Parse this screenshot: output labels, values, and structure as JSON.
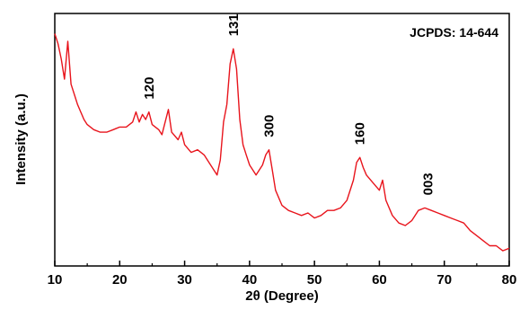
{
  "chart_data": {
    "type": "line",
    "title": "",
    "xlabel": "2θ (Degree)",
    "ylabel": "Intensity (a.u.)",
    "xlim": [
      10,
      80
    ],
    "ylim": [
      0,
      100
    ],
    "y_ticks_labeled": false,
    "x_ticks": [
      10,
      20,
      30,
      40,
      50,
      60,
      70,
      80
    ],
    "grid": false,
    "legend": "none",
    "annotation": "JCPDS: 14-644",
    "series": [
      {
        "color": "#e8141c",
        "x": [
          10,
          10.5,
          11,
          11.5,
          12,
          12.5,
          13,
          13.5,
          14,
          14.5,
          15,
          16,
          17,
          18,
          19,
          20,
          21,
          22,
          22.5,
          23,
          23.5,
          24,
          24.5,
          25,
          25.5,
          26,
          26.5,
          27,
          27.5,
          28,
          29,
          29.5,
          30,
          31,
          32,
          33,
          34,
          35,
          35.5,
          36,
          36.5,
          37,
          37.5,
          38,
          38.5,
          39,
          39.5,
          40,
          41,
          42,
          42.5,
          43,
          43.5,
          44,
          45,
          46,
          47,
          48,
          49,
          50,
          51,
          52,
          53,
          54,
          55,
          56,
          56.5,
          57,
          57.5,
          58,
          59,
          60,
          60.5,
          61,
          62,
          63,
          64,
          65,
          66,
          67,
          68,
          69,
          70,
          71,
          72,
          73,
          74,
          75,
          76,
          77,
          78,
          79,
          80
        ],
        "y": [
          92,
          88,
          82,
          74,
          89,
          72,
          68,
          64,
          61,
          58,
          56,
          54,
          53,
          53,
          54,
          55,
          55,
          57,
          61,
          57,
          60,
          58,
          61,
          56,
          55,
          54,
          52,
          57,
          62,
          53,
          50,
          53,
          48,
          45,
          46,
          44,
          40,
          36,
          42,
          57,
          64,
          80,
          86,
          78,
          58,
          48,
          44,
          40,
          36,
          40,
          44,
          46,
          38,
          30,
          24,
          22,
          21,
          20,
          21,
          19,
          20,
          22,
          22,
          23,
          26,
          34,
          41,
          43,
          39,
          36,
          33,
          30,
          34,
          26,
          20,
          17,
          16,
          18,
          22,
          23,
          22,
          21,
          20,
          19,
          18,
          17,
          14,
          12,
          10,
          8,
          8,
          6,
          7
        ]
      }
    ],
    "peaks": [
      {
        "label": "120",
        "x": 24.5,
        "y": 61
      },
      {
        "label": "131",
        "x": 37.5,
        "y": 86
      },
      {
        "label": "300",
        "x": 43,
        "y": 46
      },
      {
        "label": "160",
        "x": 57,
        "y": 43
      },
      {
        "label": "003",
        "x": 67.5,
        "y": 23
      }
    ]
  }
}
